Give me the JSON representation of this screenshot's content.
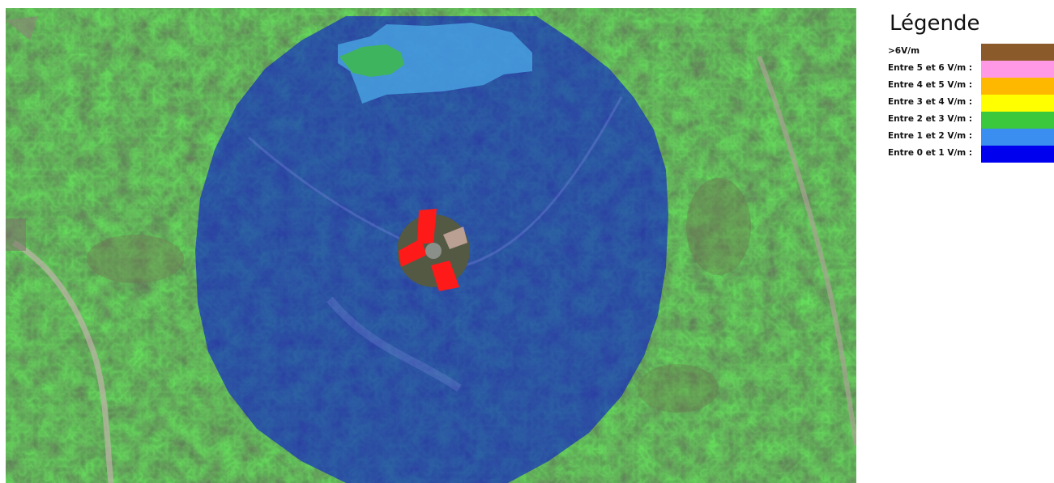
{
  "map": {
    "layers": [
      "satellite-imagery",
      "field-strength-heatmap",
      "antenna-site"
    ],
    "zone_levels_present": [
      "Entre 0 et 1 V/m :",
      "Entre 1 et 2 V/m :",
      "Entre 2 et 3 V/m :"
    ]
  },
  "legend": {
    "title": "Légende",
    "items": [
      {
        "label": ">6V/m",
        "color": "#8B5A2B"
      },
      {
        "label": "Entre 5 et 6 V/m :",
        "color": "#FF99E6"
      },
      {
        "label": "Entre 4 et 5 V/m :",
        "color": "#FFB800"
      },
      {
        "label": "Entre 3 et 4 V/m :",
        "color": "#FFFF00"
      },
      {
        "label": "Entre 2 et 3 V/m :",
        "color": "#3CC83C"
      },
      {
        "label": "Entre 1 et 2 V/m :",
        "color": "#3A8EF0"
      },
      {
        "label": "Entre 0 et 1 V/m :",
        "color": "#0000EE"
      }
    ]
  }
}
